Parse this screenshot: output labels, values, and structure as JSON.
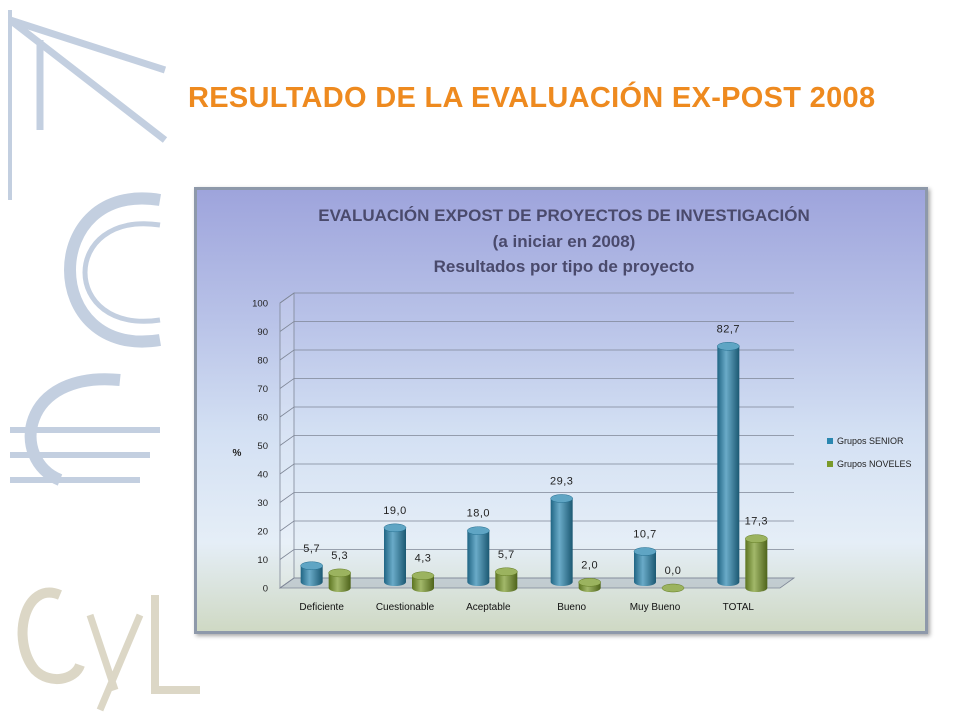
{
  "slide": {
    "title": "RESULTADO DE LA EVALUACIÓN EX-POST 2008"
  },
  "colors": {
    "title": "#ee8a1f",
    "senior": "#2a87b0",
    "noveles": "#7a9a2a",
    "logo": "#c3cfe0"
  },
  "chart_data": {
    "type": "bar",
    "title": "EVALUACIÓN EXPOST DE PROYECTOS DE INVESTIGACIÓN",
    "subtitle_1": "(a iniciar en 2008)",
    "subtitle_2": "Resultados por tipo de proyecto",
    "ylabel": "%",
    "xlabel": "",
    "ylim": [
      0,
      100
    ],
    "yticks": [
      "0",
      "10",
      "20",
      "30",
      "40",
      "50",
      "60",
      "70",
      "80",
      "90",
      "100"
    ],
    "grid": true,
    "legend_position": "right",
    "categories": [
      "Deficiente",
      "Cuestionable",
      "Aceptable",
      "Bueno",
      "Muy Bueno",
      "TOTAL"
    ],
    "series": [
      {
        "name": "Grupos SENIOR",
        "values": [
          5.7,
          19.0,
          18.0,
          29.3,
          10.7,
          82.7
        ],
        "labels": [
          "5,7",
          "19,0",
          "18,0",
          "29,3",
          "10,7",
          "82,7"
        ]
      },
      {
        "name": "Grupos NOVELES",
        "values": [
          5.3,
          4.3,
          5.7,
          2.0,
          0.0,
          17.3
        ],
        "labels": [
          "5,3",
          "4,3",
          "5,7",
          "2,0",
          "0,0",
          "17,3"
        ]
      }
    ]
  }
}
